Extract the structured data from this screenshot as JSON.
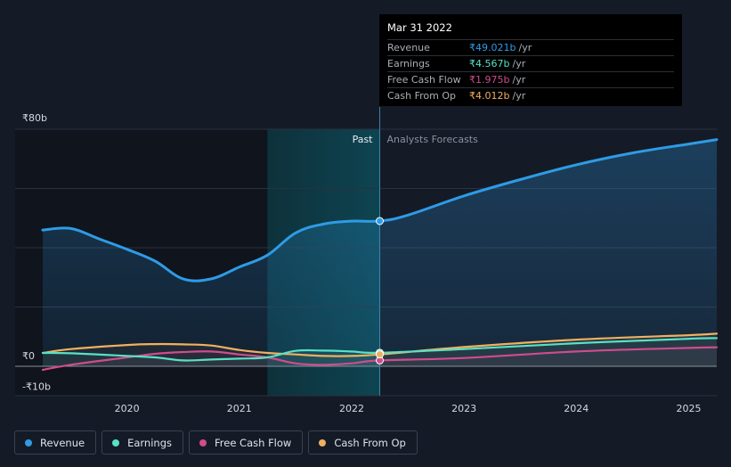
{
  "chart_data": {
    "type": "line",
    "title": "",
    "x_domain": [
      2019.25,
      2025.25
    ],
    "y_domain": [
      -10,
      80
    ],
    "y_tick_labels": [
      {
        "value": 80,
        "label": "₹80b"
      },
      {
        "value": 0,
        "label": "₹0"
      },
      {
        "value": -10,
        "label": "-₹10b"
      }
    ],
    "y_gridlines": [
      80,
      60,
      40,
      20,
      0
    ],
    "x_tick_labels": [
      {
        "value": 2020,
        "label": "2020"
      },
      {
        "value": 2021,
        "label": "2021"
      },
      {
        "value": 2022,
        "label": "2022"
      },
      {
        "value": 2023,
        "label": "2023"
      },
      {
        "value": 2024,
        "label": "2024"
      },
      {
        "value": 2025,
        "label": "2025"
      }
    ],
    "past_label": "Past",
    "forecast_label": "Analysts Forecasts",
    "highlight_range": [
      2021.25,
      2022.25
    ],
    "divider_x": 2022.25,
    "series": [
      {
        "name": "Revenue",
        "color": "#2f9be5",
        "fill": true,
        "x": [
          2019.25,
          2019.5,
          2019.75,
          2020.0,
          2020.25,
          2020.5,
          2020.75,
          2021.0,
          2021.25,
          2021.5,
          2021.75,
          2022.0,
          2022.25,
          2022.5,
          2023.0,
          2023.5,
          2024.0,
          2024.5,
          2025.0,
          2025.25
        ],
        "values": [
          46,
          46.5,
          43,
          39.5,
          35.5,
          29.5,
          29.5,
          33.5,
          37.5,
          45,
          48,
          49,
          49.021,
          51,
          57.5,
          63,
          68,
          72,
          75,
          76.5
        ]
      },
      {
        "name": "Earnings",
        "color": "#59e0c5",
        "fill": false,
        "x": [
          2019.25,
          2019.5,
          2020.0,
          2020.25,
          2020.5,
          2020.75,
          2021.0,
          2021.25,
          2021.5,
          2021.75,
          2022.0,
          2022.25,
          2023.0,
          2024.0,
          2025.0,
          2025.25
        ],
        "values": [
          4.5,
          4.4,
          3.5,
          3.0,
          2.0,
          2.3,
          2.6,
          3.0,
          5.2,
          5.3,
          5.0,
          4.567,
          5.8,
          7.8,
          9.3,
          9.5
        ]
      },
      {
        "name": "Free Cash Flow",
        "color": "#d04c8c",
        "fill": false,
        "x": [
          2019.25,
          2019.5,
          2020.0,
          2020.25,
          2020.5,
          2020.75,
          2021.0,
          2021.25,
          2021.5,
          2021.75,
          2022.0,
          2022.25,
          2023.0,
          2024.0,
          2025.0,
          2025.25
        ],
        "values": [
          -1.2,
          0.5,
          3,
          4.2,
          4.8,
          5.0,
          4.0,
          3.0,
          1.0,
          0.5,
          1.0,
          1.975,
          2.8,
          5.0,
          6.2,
          6.4
        ]
      },
      {
        "name": "Cash From Op",
        "color": "#f0b060",
        "fill": false,
        "x": [
          2019.25,
          2019.5,
          2020.0,
          2020.25,
          2020.5,
          2020.75,
          2021.0,
          2021.25,
          2021.5,
          2021.75,
          2022.0,
          2022.25,
          2023.0,
          2024.0,
          2025.0,
          2025.25
        ],
        "values": [
          4.5,
          5.8,
          7.2,
          7.5,
          7.4,
          7.0,
          5.5,
          4.5,
          4.0,
          3.5,
          3.5,
          4.012,
          6.5,
          9.0,
          10.5,
          11.0
        ]
      }
    ]
  },
  "tooltip": {
    "date": "Mar 31 2022",
    "rows": [
      {
        "label": "Revenue",
        "value": "₹49.021b",
        "unit": "/yr",
        "color": "#2f9be5"
      },
      {
        "label": "Earnings",
        "value": "₹4.567b",
        "unit": "/yr",
        "color": "#59e0c5"
      },
      {
        "label": "Free Cash Flow",
        "value": "₹1.975b",
        "unit": "/yr",
        "color": "#d04c8c"
      },
      {
        "label": "Cash From Op",
        "value": "₹4.012b",
        "unit": "/yr",
        "color": "#f0b060"
      }
    ]
  },
  "legend": [
    {
      "label": "Revenue",
      "color": "#2f9be5"
    },
    {
      "label": "Earnings",
      "color": "#59e0c5"
    },
    {
      "label": "Free Cash Flow",
      "color": "#d04c8c"
    },
    {
      "label": "Cash From Op",
      "color": "#f0b060"
    }
  ]
}
